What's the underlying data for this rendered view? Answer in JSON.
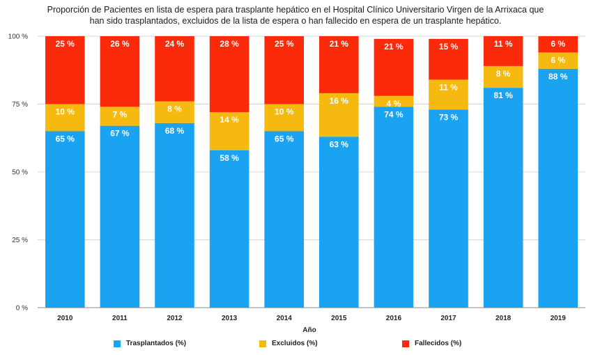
{
  "chart_data": {
    "type": "bar",
    "stacked": true,
    "title_line1": "Proporción de Pacientes en lista de espera para trasplante hepático en el Hospital Clínico Universitario Virgen de la Arrixaca que",
    "title_line2": "han sido trasplantados, excluidos de la lista de espera o han fallecido en espera de un trasplante hepático.",
    "xlabel": "Año",
    "ylabel": "",
    "ylim": [
      0,
      100
    ],
    "yticks": [
      0,
      25,
      50,
      75,
      100
    ],
    "ytick_labels": [
      "0 %",
      "25 %",
      "50 %",
      "75 %",
      "100 %"
    ],
    "grid": true,
    "legend_position": "bottom",
    "categories": [
      "2010",
      "2011",
      "2012",
      "2013",
      "2014",
      "2015",
      "2016",
      "2017",
      "2018",
      "2019"
    ],
    "series": [
      {
        "name": "Trasplantados (%)",
        "color": "#1aa3f0",
        "values": [
          65,
          67,
          68,
          58,
          65,
          63,
          74,
          73,
          81,
          88
        ],
        "labels": [
          "65 %",
          "67 %",
          "68 %",
          "58 %",
          "65 %",
          "63 %",
          "74 %",
          "73 %",
          "81 %",
          "88 %"
        ]
      },
      {
        "name": "Excluidos (%)",
        "color": "#f5b90f",
        "values": [
          10,
          7,
          8,
          14,
          10,
          16,
          4,
          11,
          8,
          6
        ],
        "labels": [
          "10 %",
          "7 %",
          "8 %",
          "14 %",
          "10 %",
          "16 %",
          "4 %",
          "11 %",
          "8 %",
          "6 %"
        ]
      },
      {
        "name": "Fallecidos (%)",
        "color": "#fa2a0a",
        "values": [
          25,
          26,
          24,
          28,
          25,
          21,
          21,
          15,
          11,
          6
        ],
        "labels": [
          "25 %",
          "26 %",
          "24 %",
          "28 %",
          "25 %",
          "21 %",
          "21 %",
          "15 %",
          "11 %",
          "6 %"
        ]
      }
    ]
  }
}
